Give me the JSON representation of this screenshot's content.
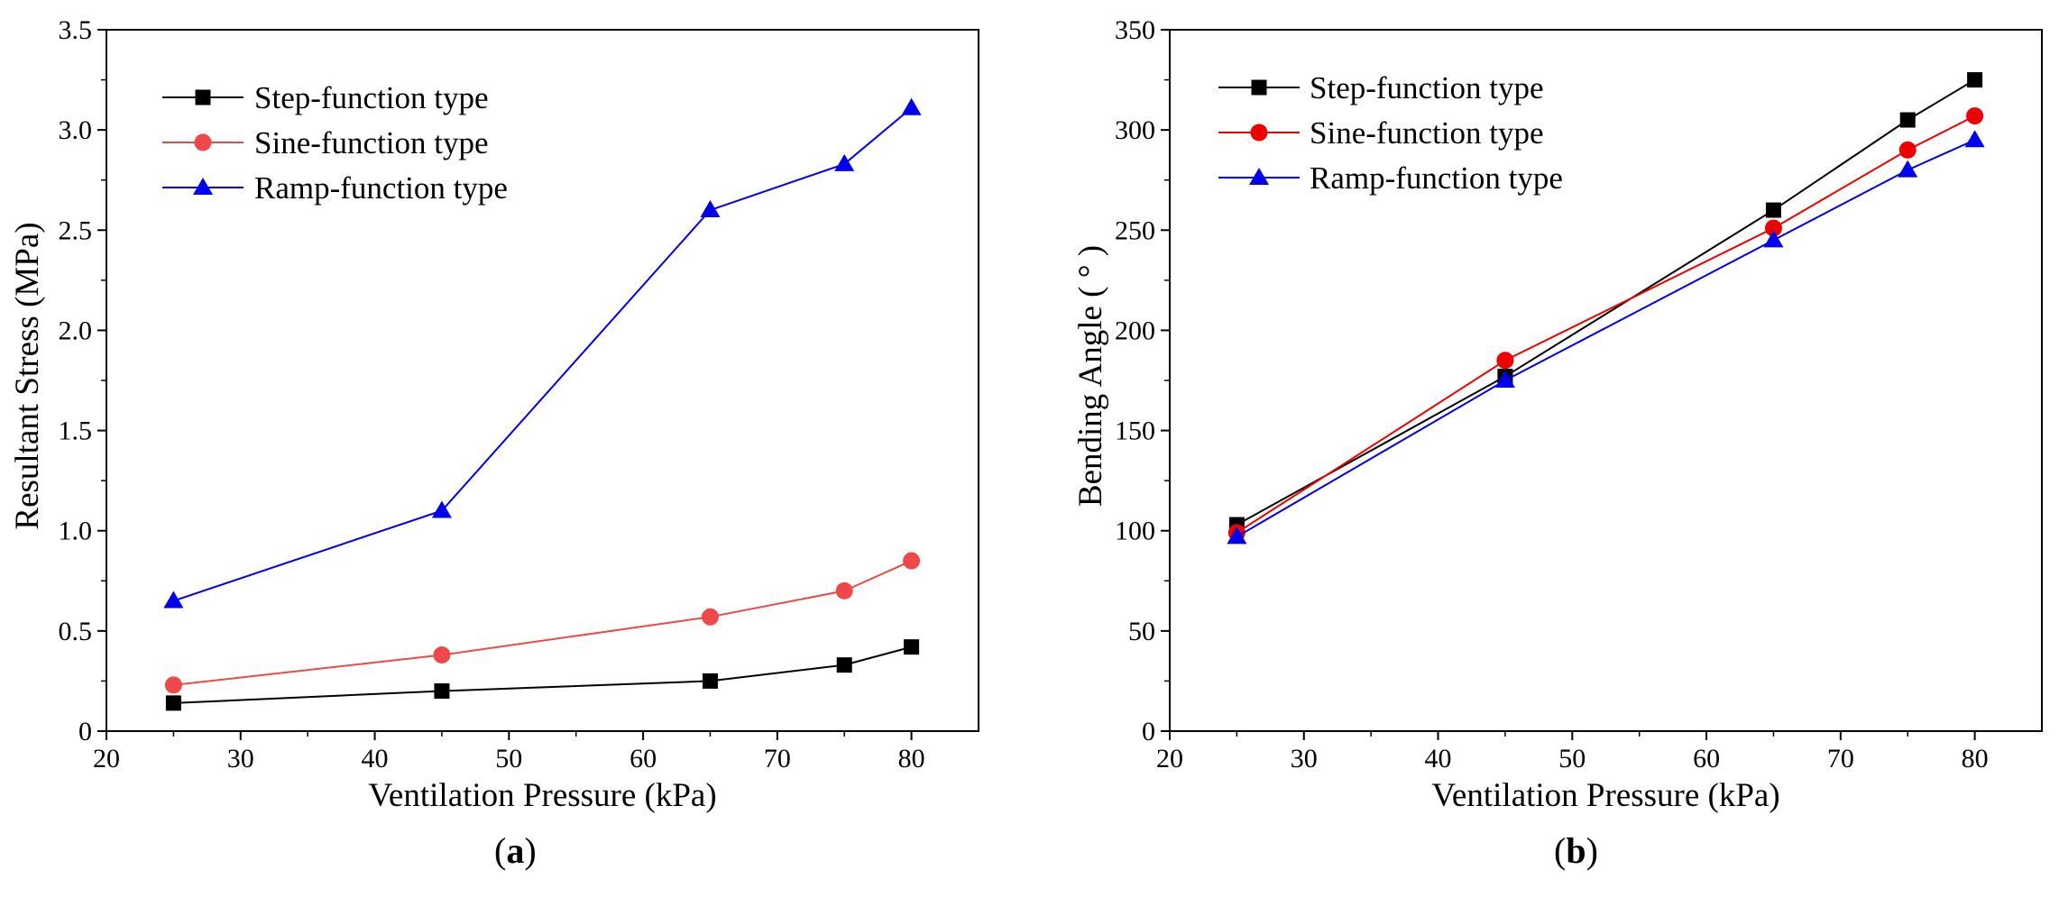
{
  "chart_data": [
    {
      "type": "line",
      "panel_label": "a",
      "xlabel": "Ventilation Pressure (kPa)",
      "ylabel": "Resultant Stress (MPa)",
      "xlim": [
        20,
        85
      ],
      "ylim": [
        0,
        3.5
      ],
      "xticks": [
        20,
        30,
        40,
        50,
        60,
        70,
        80
      ],
      "yticks": [
        0,
        0.5,
        1.0,
        1.5,
        2.0,
        2.5,
        3.0,
        3.5
      ],
      "ytick_labels": [
        "0",
        "0.5",
        "1.0",
        "1.5",
        "2.0",
        "2.5",
        "3.0",
        "3.5"
      ],
      "x": [
        25,
        45,
        65,
        75,
        80
      ],
      "grid": false,
      "legend": "top-left",
      "series": [
        {
          "name": "Step-function type",
          "color": "#000000",
          "marker": "square",
          "values": [
            0.14,
            0.2,
            0.25,
            0.33,
            0.42
          ]
        },
        {
          "name": "Sine-function type",
          "color": "#f04848",
          "marker": "circle",
          "values": [
            0.23,
            0.38,
            0.57,
            0.7,
            0.85
          ]
        },
        {
          "name": "Ramp-function type",
          "color": "#0000ee",
          "marker": "triangle",
          "values": [
            0.65,
            1.1,
            2.6,
            2.83,
            3.11
          ]
        }
      ]
    },
    {
      "type": "line",
      "panel_label": "b",
      "xlabel": "Ventilation Pressure (kPa)",
      "ylabel": "Bending Angle ( ° )",
      "xlim": [
        20,
        85
      ],
      "ylim": [
        0,
        350
      ],
      "xticks": [
        20,
        30,
        40,
        50,
        60,
        70,
        80
      ],
      "yticks": [
        0,
        50,
        100,
        150,
        200,
        250,
        300,
        350
      ],
      "ytick_labels": [
        "0",
        "50",
        "100",
        "150",
        "200",
        "250",
        "300",
        "350"
      ],
      "x": [
        25,
        45,
        65,
        75,
        80
      ],
      "grid": false,
      "legend": "top-left",
      "series": [
        {
          "name": "Step-function type",
          "color": "#000000",
          "marker": "square",
          "values": [
            103,
            177,
            260,
            305,
            325
          ]
        },
        {
          "name": "Sine-function type",
          "color": "#ee0000",
          "marker": "circle",
          "values": [
            99,
            185,
            251,
            290,
            307
          ]
        },
        {
          "name": "Ramp-function type",
          "color": "#0000ee",
          "marker": "triangle",
          "values": [
            97,
            175,
            245,
            280,
            295
          ]
        }
      ]
    }
  ]
}
